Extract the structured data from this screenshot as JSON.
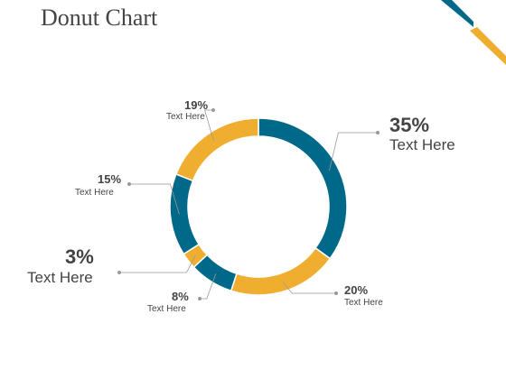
{
  "page": {
    "title": "Donut Chart"
  },
  "colors": {
    "teal": "#00698a",
    "gold": "#f0ae31",
    "leader": "#999999",
    "text": "#444444"
  },
  "chart_data": {
    "type": "pie",
    "donut": true,
    "title": "Donut Chart",
    "slices": [
      {
        "value": 35,
        "pct": "35%",
        "text": "Text Here",
        "color": "#00698a"
      },
      {
        "value": 20,
        "pct": "20%",
        "text": "Text Here",
        "color": "#f0ae31"
      },
      {
        "value": 8,
        "pct": "8%",
        "text": "Text Here",
        "color": "#00698a"
      },
      {
        "value": 3,
        "pct": "3%",
        "text": "Text Here",
        "color": "#f0ae31"
      },
      {
        "value": 15,
        "pct": "15%",
        "text": "Text Here",
        "color": "#00698a"
      },
      {
        "value": 19,
        "pct": "19%",
        "text": "Text Here",
        "color": "#f0ae31"
      }
    ]
  }
}
